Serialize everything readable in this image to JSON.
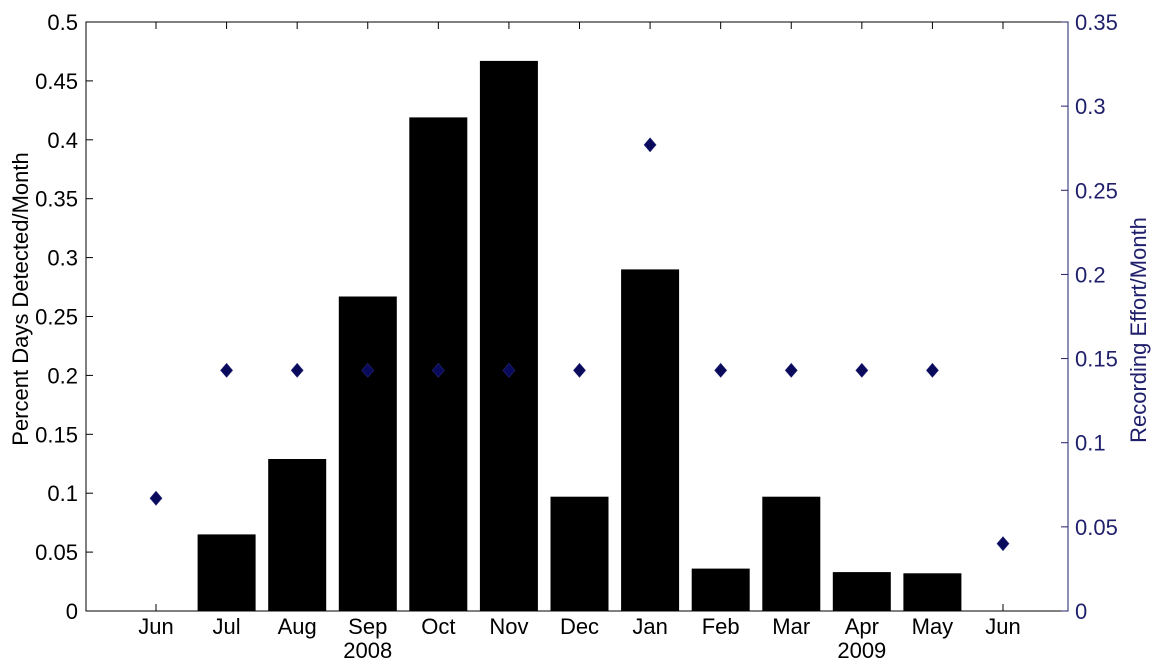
{
  "chart_data": {
    "type": "bar",
    "categories": [
      "Jun",
      "Jul",
      "Aug",
      "Sep",
      "Oct",
      "Nov",
      "Dec",
      "Jan",
      "Feb",
      "Mar",
      "Apr",
      "May",
      "Jun"
    ],
    "year_labels": [
      {
        "text": "2008",
        "under": "Sep"
      },
      {
        "text": "2009",
        "under": "Apr"
      }
    ],
    "series": [
      {
        "axis": "left",
        "type": "bar",
        "color": "#000000",
        "values": [
          0,
          0.065,
          0.129,
          0.267,
          0.419,
          0.467,
          0.097,
          0.29,
          0.036,
          0.097,
          0.033,
          0.032,
          0
        ]
      },
      {
        "axis": "right",
        "type": "scatter",
        "marker": "diamond",
        "color": "#0a0a5c",
        "values": [
          0.067,
          0.143,
          0.143,
          0.143,
          0.143,
          0.143,
          0.143,
          0.277,
          0.143,
          0.143,
          0.143,
          0.143,
          0.04
        ]
      }
    ],
    "ylabel": "Percent Days Detected/Month",
    "ylabel_right": "Recording Effort/Month",
    "xlabel": "",
    "ylim": [
      0,
      0.5
    ],
    "ylim_right": [
      0,
      0.35
    ],
    "yticks": [
      "0",
      "0.05",
      "0.1",
      "0.15",
      "0.2",
      "0.25",
      "0.3",
      "0.35",
      "0.4",
      "0.45",
      "0.5"
    ],
    "yticks_right": [
      "0",
      "0.05",
      "0.1",
      "0.15",
      "0.2",
      "0.25",
      "0.3",
      "0.35"
    ],
    "right_axis_color": "#1f1f6b",
    "grid": false,
    "legend": "none"
  }
}
